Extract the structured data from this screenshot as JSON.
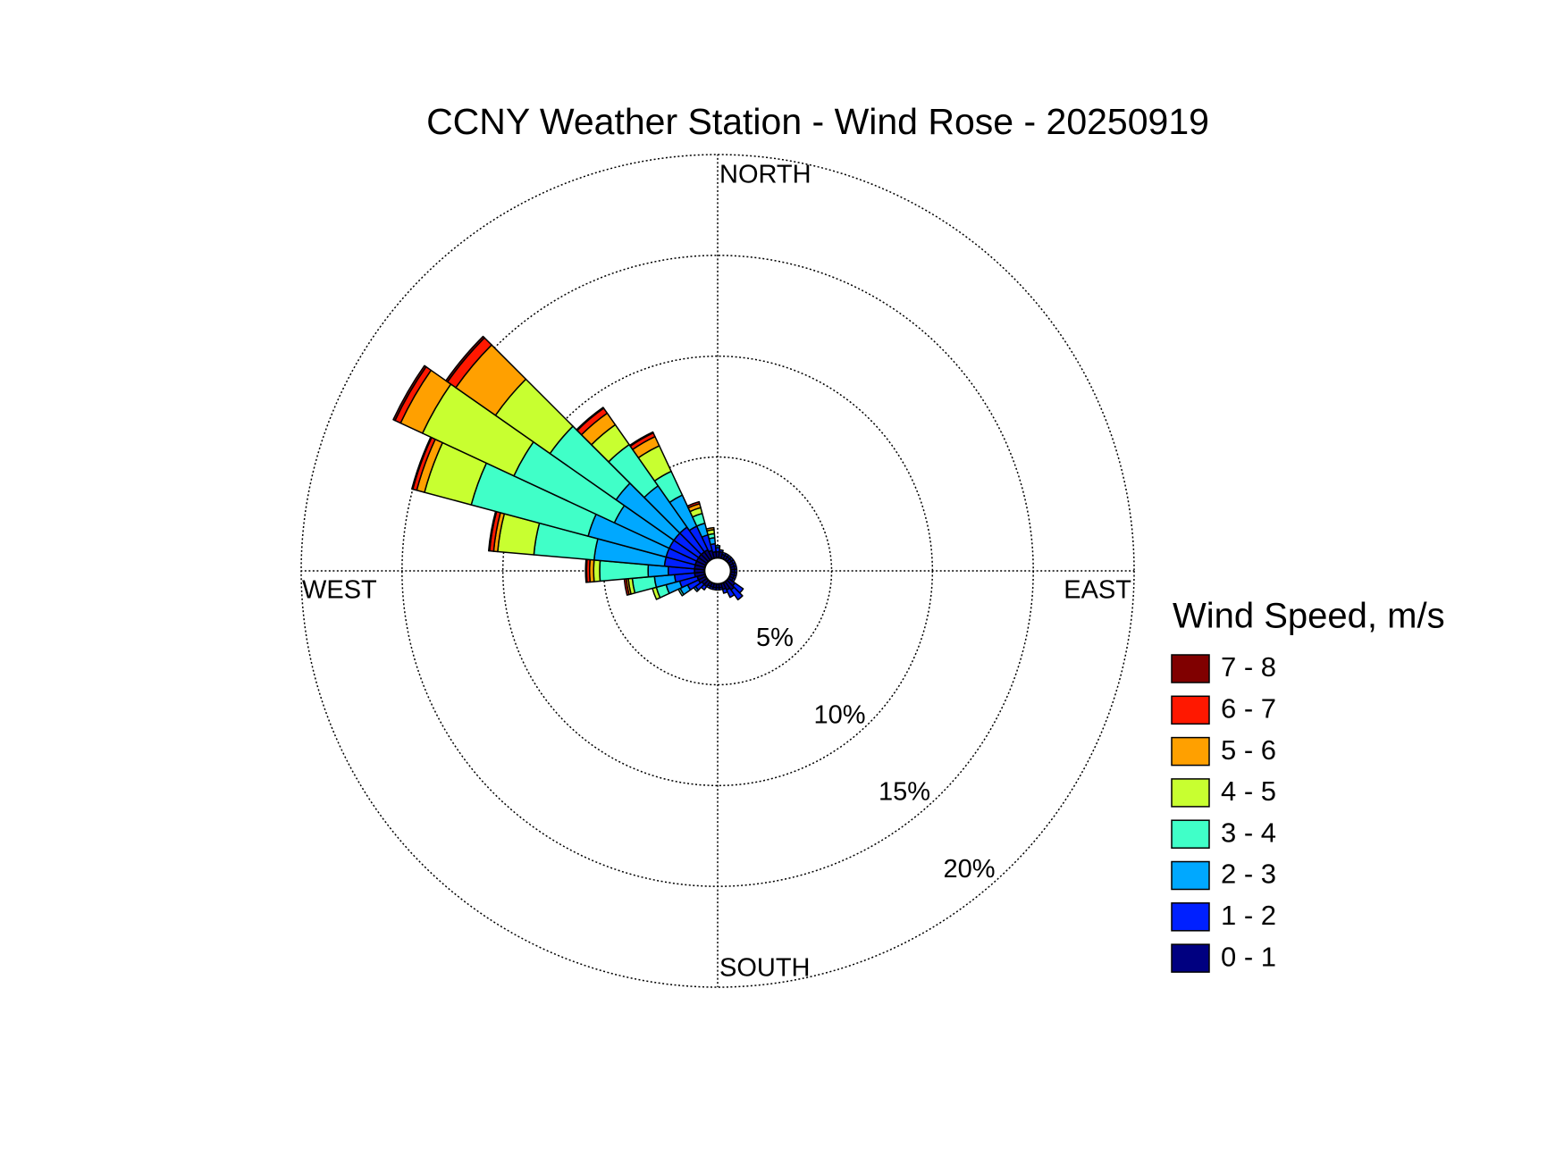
{
  "chart_data": {
    "type": "windrose",
    "title": "CCNY Weather Station - Wind Rose - 20250919",
    "direction_labels": {
      "north": "NORTH",
      "east": "EAST",
      "south": "SOUTH",
      "west": "WEST"
    },
    "x": [
      0,
      10,
      20,
      30,
      40,
      50,
      60,
      70,
      80,
      90,
      100,
      110,
      120,
      130,
      140,
      150,
      160,
      170,
      180,
      190,
      200,
      210,
      220,
      230,
      240,
      250,
      260,
      270,
      280,
      290,
      300,
      310,
      320,
      330,
      340,
      350
    ],
    "rlim": [
      0,
      20
    ],
    "rticks": [
      {
        "value": 5,
        "label": "5%"
      },
      {
        "value": 10,
        "label": "10%"
      },
      {
        "value": 15,
        "label": "15%"
      },
      {
        "value": 20,
        "label": "20%"
      }
    ],
    "legend_title": "Wind Speed, m/s",
    "series": [
      {
        "name": "0 - 1",
        "color": "#000080",
        "values": [
          0.3,
          0.3,
          0.2,
          0.2,
          0.2,
          0.2,
          0.2,
          0.2,
          0.2,
          0.2,
          0.2,
          0.2,
          0.2,
          0.4,
          0.5,
          0.4,
          0.3,
          0.2,
          0.2,
          0.2,
          0.2,
          0.2,
          0.3,
          0.3,
          0.4,
          0.4,
          0.5,
          0.5,
          0.5,
          0.5,
          0.5,
          0.5,
          0.5,
          0.5,
          0.4,
          0.3
        ]
      },
      {
        "name": "1 - 2",
        "color": "#0020ff",
        "values": [
          0.2,
          0.1,
          0.1,
          0.1,
          0.1,
          0.1,
          0.1,
          0.1,
          0.1,
          0.1,
          0.1,
          0.1,
          0.1,
          0.5,
          0.6,
          0.4,
          0.2,
          0.1,
          0.1,
          0.1,
          0.1,
          0.1,
          0.2,
          0.4,
          0.6,
          0.9,
          1.0,
          1.3,
          1.5,
          1.5,
          1.5,
          1.5,
          1.5,
          1.3,
          0.8,
          0.4
        ]
      },
      {
        "name": "2 - 3",
        "color": "#00a8ff",
        "values": [
          0.1,
          0,
          0,
          0,
          0,
          0,
          0,
          0,
          0,
          0,
          0,
          0,
          0,
          0,
          0,
          0,
          0,
          0,
          0,
          0,
          0,
          0,
          0,
          0.1,
          0.4,
          0.7,
          1.0,
          1.0,
          3.5,
          4.0,
          3.0,
          3.5,
          2.5,
          1.7,
          0.6,
          0.3
        ]
      },
      {
        "name": "3 - 4",
        "color": "#40ffc8",
        "values": [
          0,
          0,
          0,
          0,
          0,
          0,
          0,
          0,
          0,
          0,
          0,
          0,
          0,
          0,
          0,
          0,
          0,
          0,
          0,
          0,
          0,
          0,
          0,
          0,
          0.1,
          0.5,
          1.1,
          2.4,
          3.0,
          6.0,
          5.5,
          4.0,
          2.5,
          1.3,
          0.5,
          0.2
        ]
      },
      {
        "name": "4 - 5",
        "color": "#c8ff30",
        "values": [
          0,
          0,
          0,
          0,
          0,
          0,
          0,
          0,
          0,
          0,
          0,
          0,
          0,
          0,
          0,
          0,
          0,
          0,
          0,
          0,
          0,
          0,
          0,
          0,
          0,
          0.2,
          0.2,
          0.3,
          1.8,
          2.4,
          5.0,
          3.3,
          1.2,
          1.4,
          0.3,
          0.2
        ]
      },
      {
        "name": "5 - 6",
        "color": "#ffa000",
        "values": [
          0,
          0,
          0,
          0,
          0,
          0,
          0,
          0,
          0,
          0,
          0,
          0,
          0,
          0,
          0,
          0,
          0,
          0,
          0,
          0,
          0,
          0,
          0,
          0,
          0,
          0,
          0.1,
          0.2,
          0.2,
          0.4,
          1.2,
          2.4,
          0.7,
          0.5,
          0.2,
          0.1
        ]
      },
      {
        "name": "6 - 7",
        "color": "#ff1800",
        "values": [
          0,
          0,
          0,
          0,
          0,
          0,
          0,
          0,
          0,
          0,
          0,
          0,
          0,
          0,
          0,
          0,
          0,
          0,
          0,
          0,
          0,
          0,
          0,
          0,
          0,
          0,
          0.1,
          0.15,
          0.2,
          0.2,
          0.3,
          0.5,
          0.3,
          0.2,
          0.1,
          0
        ]
      },
      {
        "name": "7 - 8",
        "color": "#800000",
        "values": [
          0,
          0,
          0,
          0,
          0,
          0,
          0,
          0,
          0,
          0,
          0,
          0,
          0,
          0,
          0,
          0,
          0,
          0,
          0,
          0,
          0,
          0,
          0,
          0,
          0,
          0,
          0,
          0.05,
          0.05,
          0.05,
          0.1,
          0.1,
          0.05,
          0.05,
          0,
          0
        ]
      }
    ]
  }
}
